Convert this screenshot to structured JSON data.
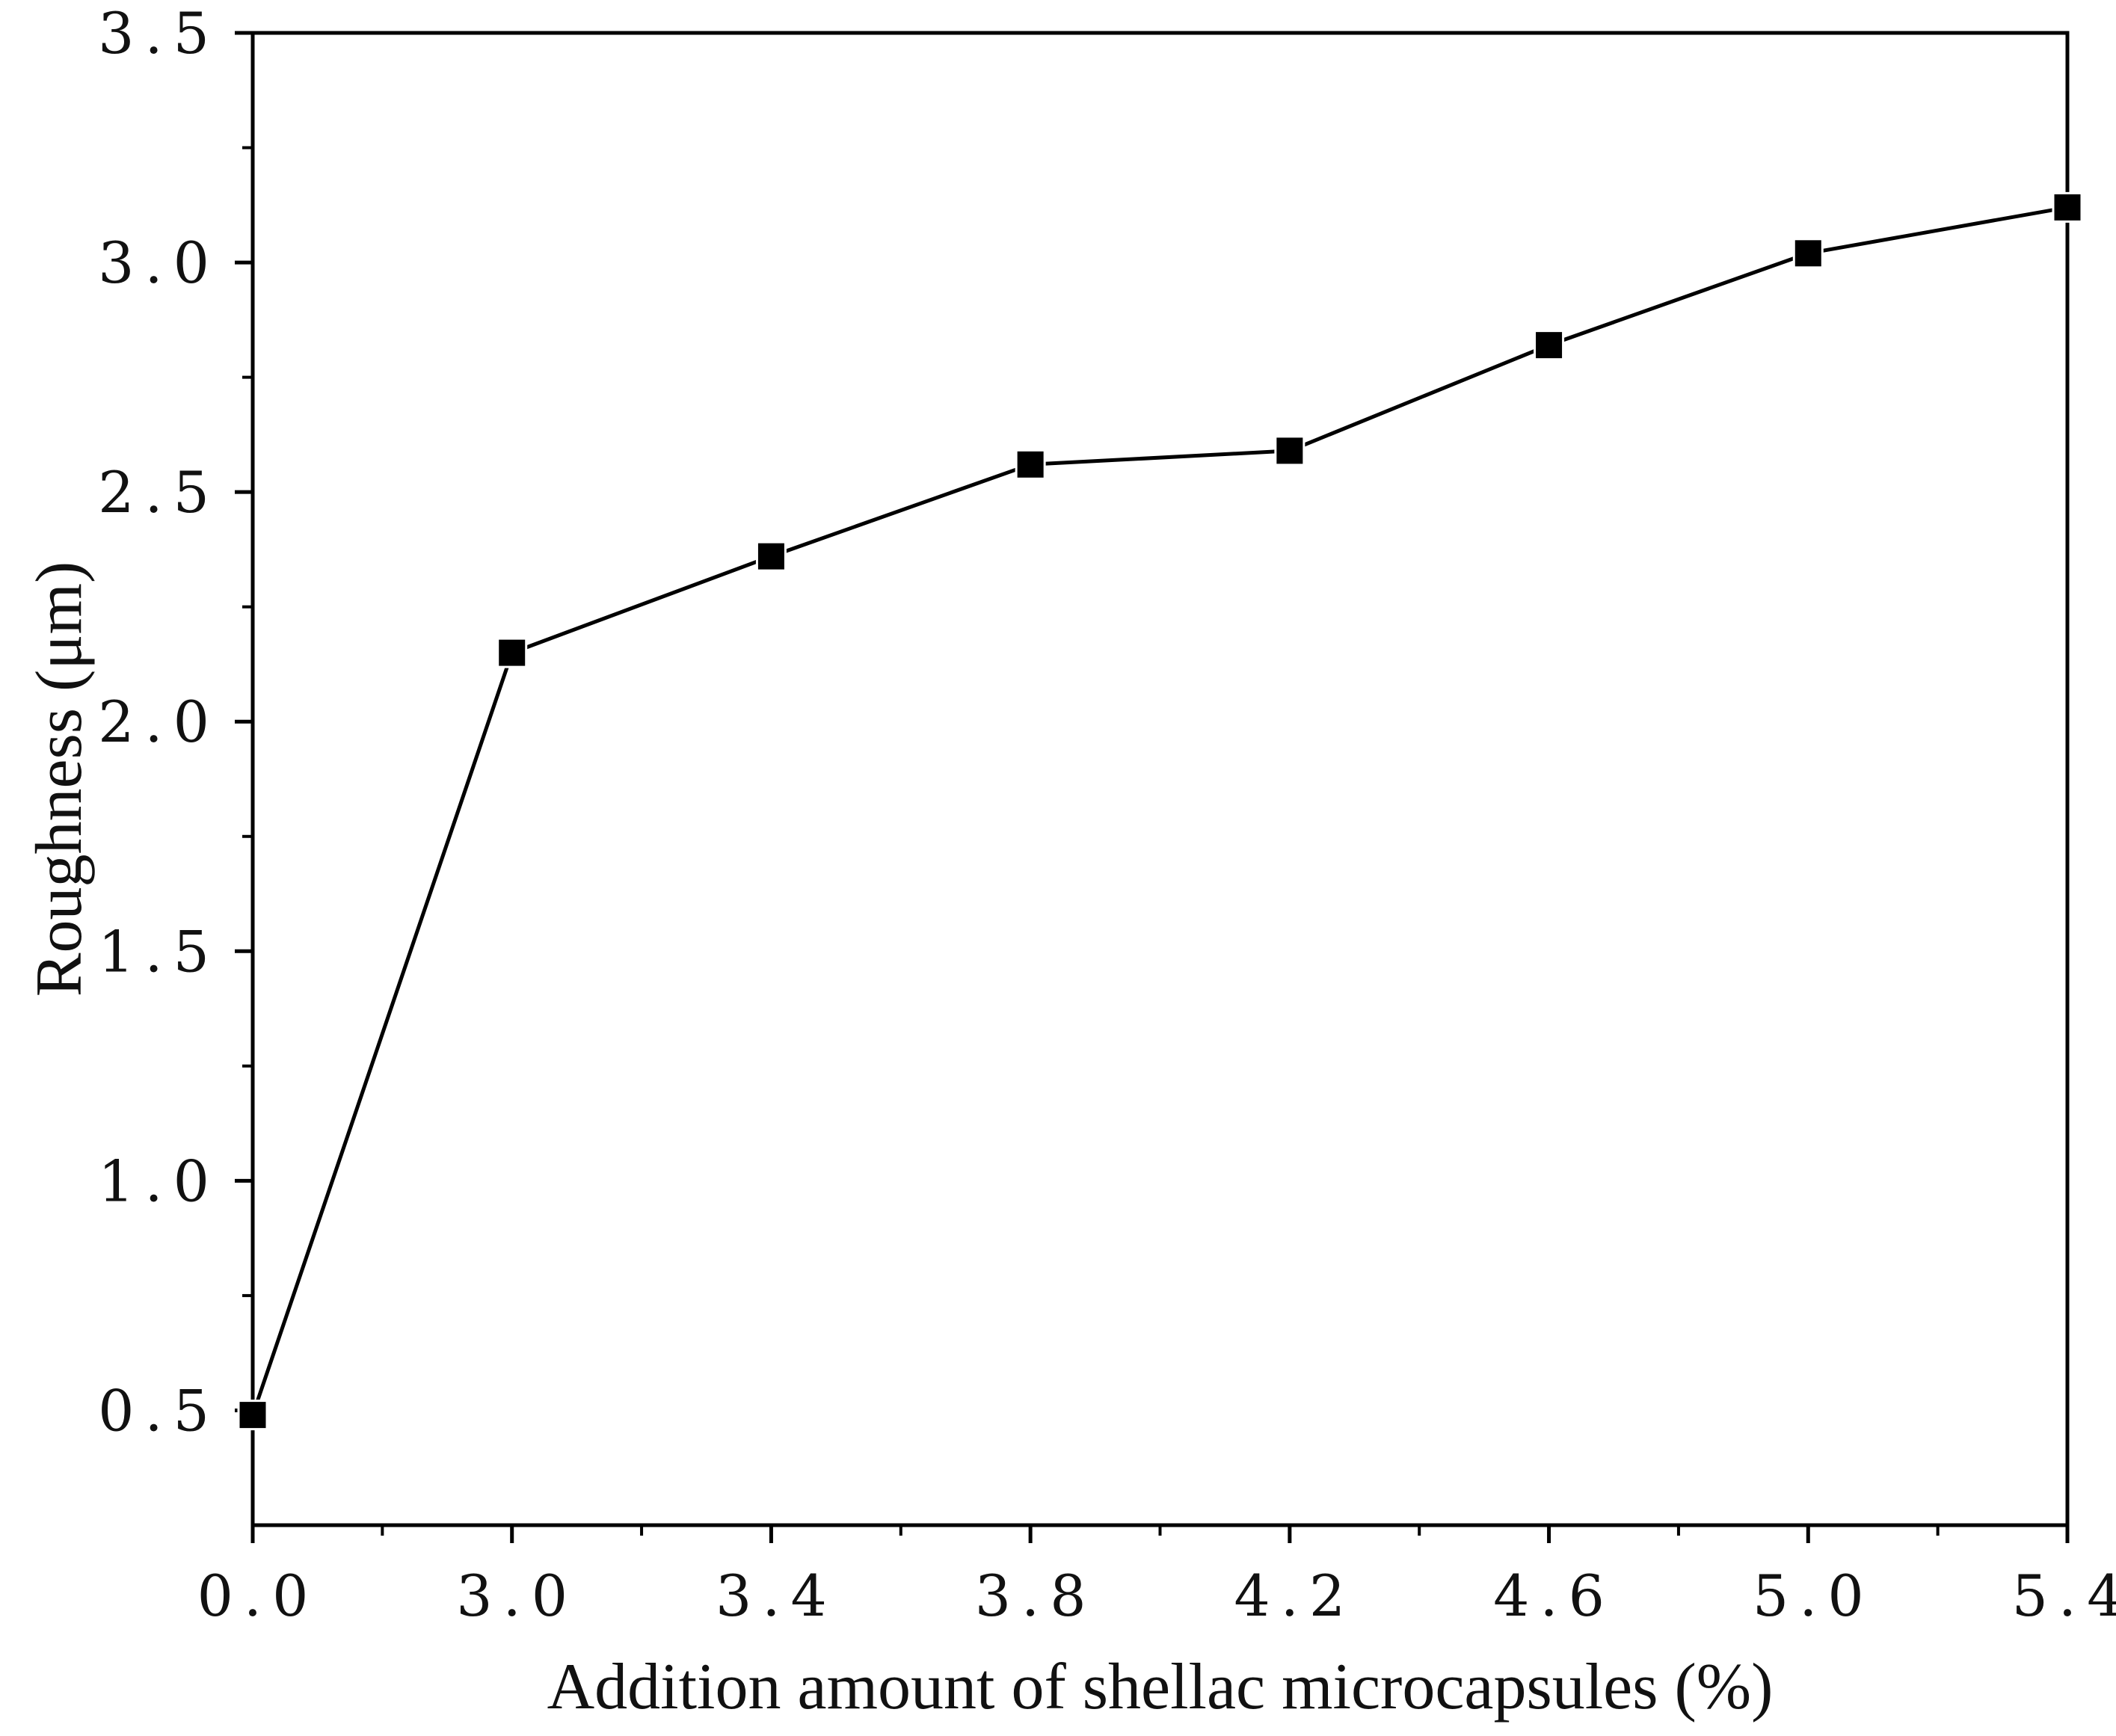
{
  "chart_data": {
    "type": "line",
    "title": "",
    "xlabel": "Addition amount of shellac microcapsules (%)",
    "ylabel": "Roughness (μm)",
    "x_scale": "categorical",
    "categories": [
      "0.0",
      "3.0",
      "3.4",
      "3.8",
      "4.2",
      "4.6",
      "5.0",
      "5.4"
    ],
    "ylim": [
      0.25,
      3.5
    ],
    "yticks": [
      0.5,
      1.0,
      1.5,
      2.0,
      2.5,
      3.0,
      3.5
    ],
    "ytick_labels": [
      "0.5",
      "1.0",
      "1.5",
      "2.0",
      "2.5",
      "3.0",
      "3.5"
    ],
    "series": [
      {
        "name": "Roughness",
        "marker": "square",
        "color": "#000000",
        "values": [
          0.49,
          2.15,
          2.36,
          2.56,
          2.59,
          2.82,
          3.02,
          3.12
        ]
      }
    ],
    "grid": false,
    "legend": "none"
  }
}
